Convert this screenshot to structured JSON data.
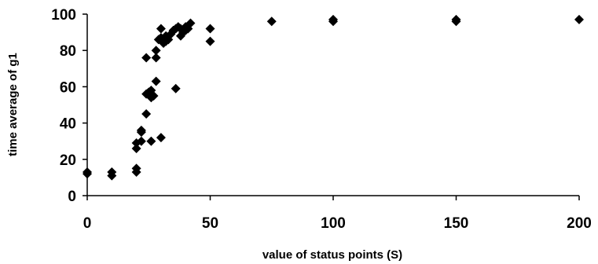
{
  "chart_data": {
    "type": "scatter",
    "title": "",
    "xlabel": "value of status points (S)",
    "ylabel": "time average of g1",
    "xlim": [
      0,
      200
    ],
    "ylim": [
      0,
      100
    ],
    "xticks": [
      0,
      50,
      100,
      150,
      200
    ],
    "yticks": [
      0,
      20,
      40,
      60,
      80,
      100
    ],
    "grid": false,
    "legend": "none",
    "marker": "diamond",
    "marker_color": "#000000",
    "series": [
      {
        "x": [
          0,
          0,
          10,
          10,
          20,
          20,
          20,
          20,
          22,
          22,
          22,
          24,
          24,
          24,
          25,
          26,
          26,
          26,
          27,
          28,
          28,
          28,
          29,
          30,
          30,
          30,
          31,
          32,
          32,
          33,
          34,
          35,
          36,
          36,
          37,
          38,
          38,
          39,
          40,
          40,
          41,
          42,
          50,
          50,
          75,
          100,
          100,
          150,
          150,
          200
        ],
        "y": [
          12,
          13,
          11,
          13,
          13,
          15,
          26,
          29,
          30,
          35,
          36,
          45,
          56,
          76,
          57,
          30,
          54,
          58,
          55,
          63,
          76,
          80,
          86,
          32,
          87,
          92,
          84,
          85,
          88,
          86,
          89,
          91,
          59,
          92,
          93,
          88,
          92,
          90,
          91,
          93,
          92,
          95,
          85,
          92,
          96,
          96,
          97,
          96,
          97,
          97
        ]
      }
    ]
  }
}
